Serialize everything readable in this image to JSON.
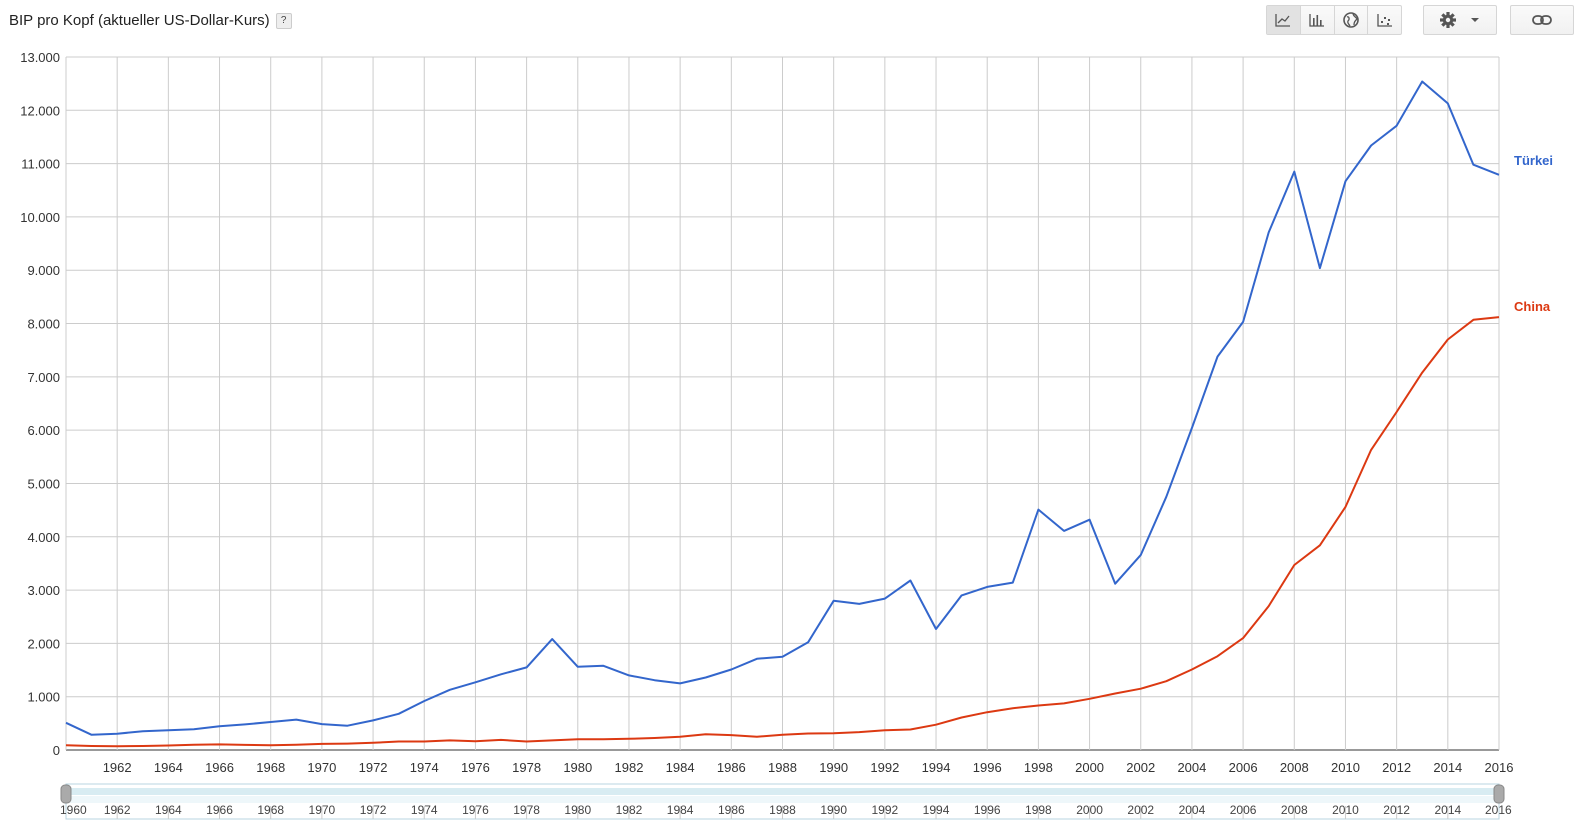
{
  "title": "BIP pro Kopf (aktueller US-Dollar-Kurs)",
  "help_label": "?",
  "toolbar": {
    "chart_types": [
      {
        "icon": "line-chart-icon",
        "active": true
      },
      {
        "icon": "bar-chart-icon",
        "active": false
      },
      {
        "icon": "globe-icon",
        "active": false
      },
      {
        "icon": "scatter-chart-icon",
        "active": false
      }
    ],
    "settings_icon": "gear-icon",
    "dropdown_icon": "chevron-down-icon",
    "link_icon": "link-icon"
  },
  "chart_data": {
    "type": "line",
    "title": "BIP pro Kopf (aktueller US-Dollar-Kurs)",
    "xlabel": "",
    "ylabel": "",
    "ylim": [
      0,
      13000
    ],
    "xlim": [
      1960,
      2016
    ],
    "y_ticks": [
      0,
      1000,
      2000,
      3000,
      4000,
      5000,
      6000,
      7000,
      8000,
      9000,
      10000,
      11000,
      12000,
      13000
    ],
    "y_tick_labels": [
      "0",
      "1.000",
      "2.000",
      "3.000",
      "4.000",
      "5.000",
      "6.000",
      "7.000",
      "8.000",
      "9.000",
      "10.000",
      "11.000",
      "12.000",
      "13.000"
    ],
    "x_tick_labels": [
      "1962",
      "1964",
      "1966",
      "1968",
      "1970",
      "1972",
      "1974",
      "1976",
      "1978",
      "1980",
      "1982",
      "1984",
      "1986",
      "1988",
      "1990",
      "1992",
      "1994",
      "1996",
      "1998",
      "2000",
      "2002",
      "2004",
      "2006",
      "2008",
      "2010",
      "2012",
      "2014",
      "2016"
    ],
    "grid": true,
    "legend": "inline-right",
    "x": [
      1960,
      1961,
      1962,
      1963,
      1964,
      1965,
      1966,
      1967,
      1968,
      1969,
      1970,
      1971,
      1972,
      1973,
      1974,
      1975,
      1976,
      1977,
      1978,
      1979,
      1980,
      1981,
      1982,
      1983,
      1984,
      1985,
      1986,
      1987,
      1988,
      1989,
      1990,
      1991,
      1992,
      1993,
      1994,
      1995,
      1996,
      1997,
      1998,
      1999,
      2000,
      2001,
      2002,
      2003,
      2004,
      2005,
      2006,
      2007,
      2008,
      2009,
      2010,
      2011,
      2012,
      2013,
      2014,
      2015,
      2016
    ],
    "series": [
      {
        "name": "Türkei",
        "color": "#3366cc",
        "values": [
          510,
          285,
          305,
          350,
          370,
          390,
          445,
          480,
          525,
          570,
          485,
          455,
          555,
          680,
          920,
          1130,
          1270,
          1420,
          1550,
          2080,
          1560,
          1580,
          1400,
          1310,
          1250,
          1360,
          1510,
          1710,
          1750,
          2020,
          2800,
          2740,
          2840,
          3180,
          2270,
          2900,
          3060,
          3140,
          4510,
          4110,
          4320,
          3120,
          3660,
          4750,
          6040,
          7380,
          8030,
          9710,
          10850,
          9040,
          10670,
          11340,
          11710,
          12540,
          12130,
          10980,
          10790
        ]
      },
      {
        "name": "China",
        "color": "#dc3912",
        "values": [
          90,
          75,
          70,
          75,
          85,
          100,
          105,
          95,
          90,
          100,
          115,
          120,
          135,
          160,
          160,
          180,
          165,
          190,
          160,
          180,
          200,
          200,
          210,
          225,
          250,
          295,
          280,
          250,
          285,
          310,
          315,
          335,
          370,
          385,
          475,
          610,
          710,
          785,
          835,
          875,
          960,
          1060,
          1150,
          1290,
          1510,
          1760,
          2100,
          2700,
          3470,
          3840,
          4560,
          5630,
          6340,
          7080,
          7700,
          8070,
          8120
        ]
      }
    ]
  },
  "range_slider": {
    "start_label": "1960",
    "end_label": "2016",
    "tick_labels": [
      "1962",
      "1964",
      "1966",
      "1968",
      "1970",
      "1972",
      "1974",
      "1976",
      "1978",
      "1980",
      "1982",
      "1984",
      "1986",
      "1988",
      "1990",
      "1992",
      "1994",
      "1996",
      "1998",
      "2000",
      "2002",
      "2004",
      "2006",
      "2008",
      "2010",
      "2012",
      "2014"
    ]
  }
}
